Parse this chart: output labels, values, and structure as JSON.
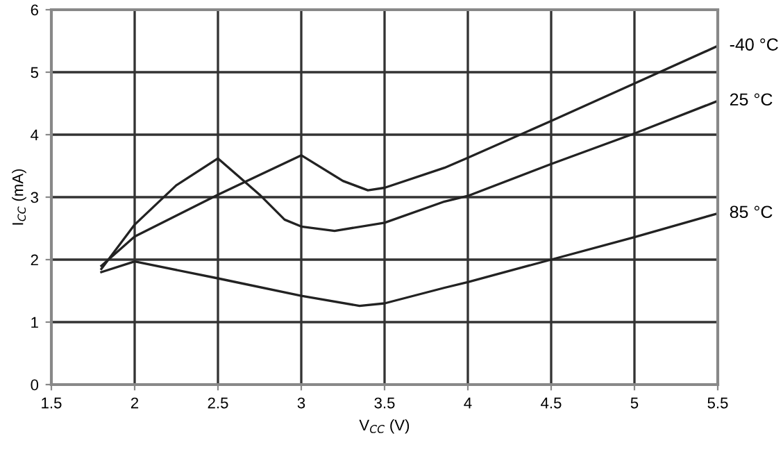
{
  "chart_data": {
    "type": "line",
    "xlabel": "V$_{CC}$ (V)",
    "ylabel": "I$_{CC}$ (mA)",
    "xlim": [
      1.5,
      5.5
    ],
    "xticks": [
      1.5,
      2,
      2.5,
      3,
      3.5,
      4,
      4.5,
      5,
      5.5
    ],
    "ylim": [
      0,
      6
    ],
    "yticks": [
      0,
      1,
      2,
      3,
      4,
      5,
      6
    ],
    "grid": true,
    "legend": false,
    "marker": "none",
    "line_style": "solid",
    "series": [
      {
        "name": "-40 °C",
        "color": "#222222",
        "x": [
          1.8,
          2.0,
          2.5,
          3.0,
          3.25,
          3.4,
          3.5,
          3.86,
          4.0,
          4.5,
          5.0,
          5.5
        ],
        "values": [
          1.9,
          2.37,
          3.04,
          3.67,
          3.26,
          3.11,
          3.15,
          3.47,
          3.63,
          4.22,
          4.82,
          5.42
        ]
      },
      {
        "name": "25 °C",
        "color": "#222222",
        "x": [
          1.8,
          2.0,
          2.25,
          2.5,
          2.75,
          2.9,
          3.0,
          3.2,
          3.5,
          3.86,
          4.0,
          4.5,
          5.0,
          5.5
        ],
        "values": [
          1.85,
          2.56,
          3.19,
          3.62,
          3.04,
          2.64,
          2.53,
          2.46,
          2.59,
          2.93,
          3.02,
          3.53,
          4.02,
          4.54
        ]
      },
      {
        "name": "85 °C",
        "color": "#222222",
        "x": [
          1.8,
          2.0,
          2.5,
          3.0,
          3.35,
          3.5,
          3.86,
          4.0,
          4.5,
          5.0,
          5.5
        ],
        "values": [
          1.8,
          1.97,
          1.7,
          1.42,
          1.26,
          1.3,
          1.55,
          1.64,
          2.0,
          2.36,
          2.74
        ]
      }
    ]
  }
}
